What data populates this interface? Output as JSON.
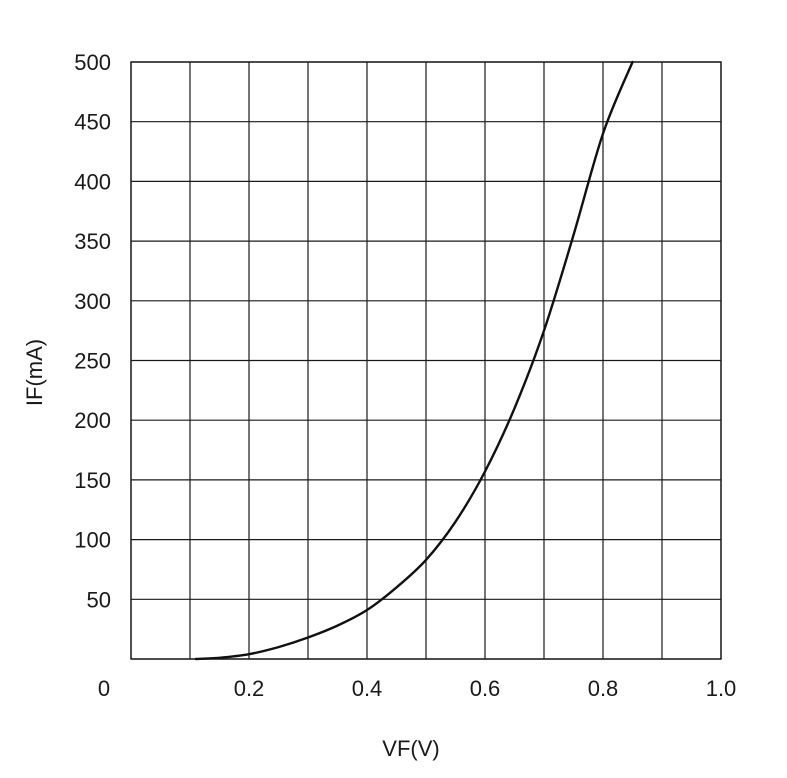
{
  "chart_data": {
    "type": "line",
    "title": "",
    "xlabel": "VF(V)",
    "ylabel": "IF(mA)",
    "xlim": [
      0,
      1.0
    ],
    "ylim": [
      0,
      500
    ],
    "x_ticks": [
      0,
      0.1,
      0.2,
      0.3,
      0.4,
      0.5,
      0.6,
      0.7,
      0.8,
      0.9,
      1.0
    ],
    "x_tick_labels": [
      "0.2",
      "0.4",
      "0.6",
      "0.8",
      "1.0"
    ],
    "x_tick_label_values": [
      0.2,
      0.4,
      0.6,
      0.8,
      1.0
    ],
    "y_ticks": [
      0,
      50,
      100,
      150,
      200,
      250,
      300,
      350,
      400,
      450,
      500
    ],
    "y_tick_labels": [
      "50",
      "100",
      "150",
      "200",
      "250",
      "300",
      "350",
      "400",
      "450",
      "500"
    ],
    "y_tick_label_values": [
      50,
      100,
      150,
      200,
      250,
      300,
      350,
      400,
      450,
      500
    ],
    "origin_label": "0",
    "grid": true,
    "series": [
      {
        "x": [
          0.11,
          0.15,
          0.2,
          0.25,
          0.3,
          0.35,
          0.4,
          0.45,
          0.5,
          0.55,
          0.6,
          0.65,
          0.7,
          0.75,
          0.8,
          0.85
        ],
        "y": [
          0,
          1,
          4,
          10,
          18,
          28,
          41,
          60,
          83,
          115,
          157,
          210,
          275,
          355,
          440,
          500
        ]
      }
    ]
  }
}
